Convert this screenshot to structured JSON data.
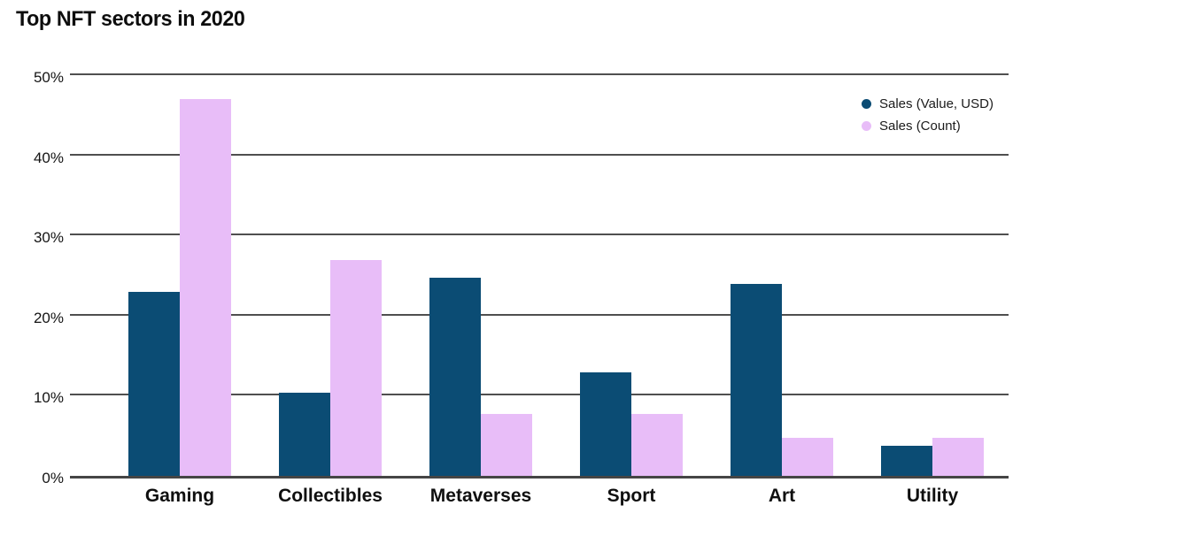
{
  "chart_data": {
    "type": "bar",
    "title": "Top NFT sectors in 2020",
    "categories": [
      "Gaming",
      "Collectibles",
      "Metaverses",
      "Sport",
      "Art",
      "Utility"
    ],
    "series": [
      {
        "name": "Sales (Value, USD)",
        "color": "#0b4c74",
        "values": [
          23.0,
          10.4,
          24.7,
          12.9,
          24.0,
          3.7
        ]
      },
      {
        "name": "Sales (Count)",
        "color": "#e8bdf8",
        "values": [
          47.0,
          26.9,
          7.7,
          7.7,
          4.7,
          4.7
        ]
      }
    ],
    "xlabel": "",
    "ylabel": "",
    "ylim": [
      0,
      50
    ],
    "yticks": [
      0,
      10,
      20,
      30,
      40,
      50
    ],
    "ytick_labels": [
      "0%",
      "10%",
      "20%",
      "30%",
      "40%",
      "50%"
    ],
    "grid": "horizontal",
    "gridline_color": "#4f4f4f",
    "legend_position": "top-right",
    "background_color": "#ffffff",
    "title_color": "#0d0d0d",
    "axis_text_color": "#141414"
  }
}
